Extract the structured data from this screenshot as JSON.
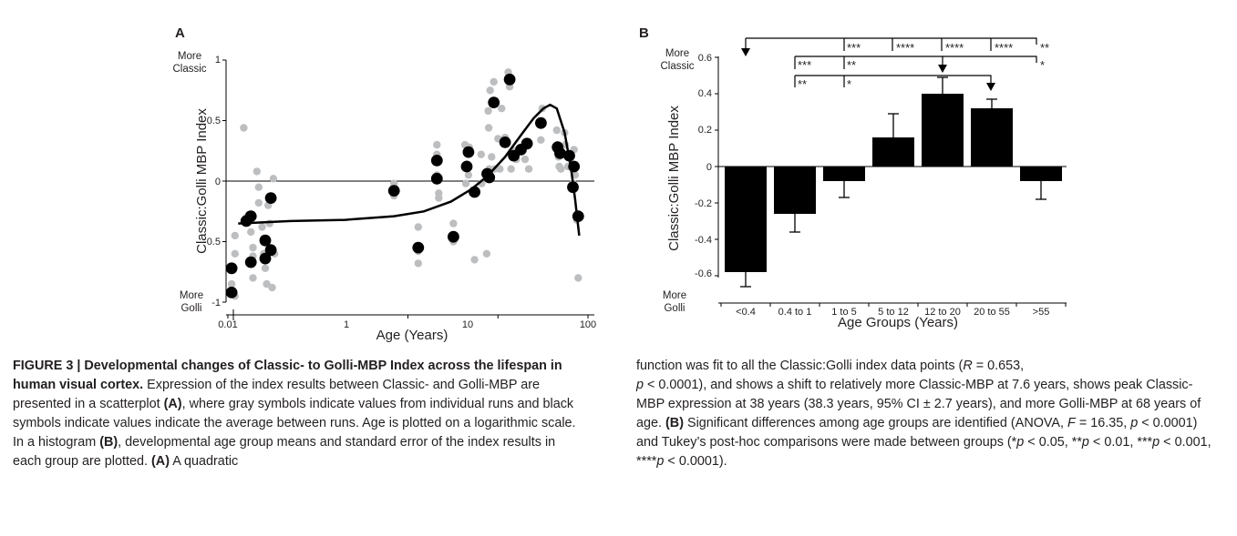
{
  "panel_a": {
    "letter": "A",
    "ylabel": "Classic:Golli MBP Index",
    "xlabel": "Age (Years)",
    "top_anno": [
      "More",
      "Classic"
    ],
    "bottom_anno": [
      "More",
      "Golli"
    ],
    "yticks": [
      "1",
      "0.5",
      "0",
      "-0.5",
      "-1"
    ],
    "xticks": [
      "0.01",
      "1",
      "10",
      "100"
    ]
  },
  "panel_b": {
    "letter": "B",
    "ylabel": "Classic:Golli MBP Index",
    "xlabel": "Age Groups (Years)",
    "top_anno": [
      "More",
      "Classic"
    ],
    "bottom_anno": [
      "More",
      "Golli"
    ],
    "yticks": [
      "0.6",
      "0.4",
      "0.2",
      "0",
      "-0.2",
      "-0.4",
      "-0.6"
    ],
    "sig_row1": [
      "***",
      "****",
      "****",
      "****",
      "**"
    ],
    "sig_row2": [
      "***",
      "**",
      "*"
    ],
    "sig_row3": [
      "**",
      "*"
    ]
  },
  "chart_data": [
    {
      "type": "scatter",
      "panel": "A",
      "xlabel": "Age (Years)",
      "ylabel": "Classic:Golli MBP Index",
      "x_scale": "log",
      "xlim": [
        0.01,
        100
      ],
      "ylim": [
        -1,
        1
      ],
      "series": [
        {
          "name": "",
          "color": "#bcbec0",
          "points": [
            [
              0.011,
              -0.72
            ],
            [
              0.011,
              -0.85
            ],
            [
              0.012,
              -0.95
            ],
            [
              0.012,
              -0.6
            ],
            [
              0.012,
              -0.45
            ],
            [
              0.015,
              0.44
            ],
            [
              0.016,
              -0.3
            ],
            [
              0.017,
              -0.28
            ],
            [
              0.018,
              -0.42
            ],
            [
              0.019,
              -0.55
            ],
            [
              0.019,
              -0.62
            ],
            [
              0.019,
              -0.8
            ],
            [
              0.021,
              0.08
            ],
            [
              0.022,
              -0.05
            ],
            [
              0.022,
              -0.18
            ],
            [
              0.024,
              -0.38
            ],
            [
              0.025,
              -0.6
            ],
            [
              0.026,
              -0.72
            ],
            [
              0.027,
              -0.85
            ],
            [
              0.028,
              -0.2
            ],
            [
              0.029,
              -0.35
            ],
            [
              0.029,
              -0.55
            ],
            [
              0.031,
              -0.88
            ],
            [
              0.032,
              0.02
            ],
            [
              0.033,
              -0.6
            ],
            [
              0.7,
              -0.02
            ],
            [
              0.7,
              -0.12
            ],
            [
              1.3,
              -0.38
            ],
            [
              1.3,
              -0.58
            ],
            [
              1.3,
              -0.68
            ],
            [
              2.1,
              0.3
            ],
            [
              2.1,
              0.22
            ],
            [
              2.1,
              0.05
            ],
            [
              2.2,
              -0.1
            ],
            [
              2.2,
              -0.14
            ],
            [
              3.2,
              -0.35
            ],
            [
              3.2,
              -0.5
            ],
            [
              4.3,
              0.3
            ],
            [
              4.4,
              -0.02
            ],
            [
              4.5,
              0.14
            ],
            [
              4.7,
              0.05
            ],
            [
              4.8,
              0.28
            ],
            [
              5.5,
              -0.65
            ],
            [
              6.5,
              0.22
            ],
            [
              6.6,
              -0.02
            ],
            [
              7.5,
              -0.6
            ],
            [
              7.8,
              0.58
            ],
            [
              7.9,
              0.44
            ],
            [
              8.0,
              0.1
            ],
            [
              8.2,
              0.75
            ],
            [
              8.5,
              0.2
            ],
            [
              9.0,
              0.82
            ],
            [
              9.2,
              0.1
            ],
            [
              10.0,
              0.35
            ],
            [
              10.5,
              0.1
            ],
            [
              11.0,
              0.6
            ],
            [
              12.0,
              0.36
            ],
            [
              13.0,
              0.9
            ],
            [
              13.5,
              0.78
            ],
            [
              14.0,
              0.1
            ],
            [
              15.0,
              0.25
            ],
            [
              16.0,
              0.18
            ],
            [
              18.0,
              0.28
            ],
            [
              20.0,
              0.18
            ],
            [
              21.0,
              0.32
            ],
            [
              22.0,
              0.1
            ],
            [
              30.0,
              0.34
            ],
            [
              31.0,
              0.6
            ],
            [
              45.0,
              0.42
            ],
            [
              46.0,
              0.3
            ],
            [
              47.0,
              0.2
            ],
            [
              48.0,
              0.12
            ],
            [
              50.0,
              0.1
            ],
            [
              55.0,
              0.4
            ],
            [
              56.0,
              0.3
            ],
            [
              60.0,
              0.12
            ],
            [
              68.0,
              -0.02
            ],
            [
              70.0,
              0.26
            ],
            [
              72.0,
              0.05
            ],
            [
              75.0,
              -0.32
            ],
            [
              76.0,
              -0.3
            ],
            [
              78.0,
              -0.8
            ]
          ]
        },
        {
          "name": "",
          "color": "#000000",
          "points": [
            [
              0.011,
              -0.72
            ],
            [
              0.011,
              -0.92
            ],
            [
              0.016,
              -0.33
            ],
            [
              0.018,
              -0.29
            ],
            [
              0.018,
              -0.67
            ],
            [
              0.026,
              -0.49
            ],
            [
              0.026,
              -0.64
            ],
            [
              0.03,
              -0.14
            ],
            [
              0.03,
              -0.57
            ],
            [
              0.7,
              -0.08
            ],
            [
              1.3,
              -0.55
            ],
            [
              2.1,
              0.17
            ],
            [
              2.1,
              0.02
            ],
            [
              3.2,
              -0.46
            ],
            [
              4.5,
              0.12
            ],
            [
              4.7,
              0.24
            ],
            [
              5.5,
              -0.09
            ],
            [
              7.6,
              0.06
            ],
            [
              8.0,
              0.03
            ],
            [
              9.0,
              0.65
            ],
            [
              12.0,
              0.32
            ],
            [
              13.5,
              0.84
            ],
            [
              15.0,
              0.21
            ],
            [
              18.0,
              0.26
            ],
            [
              21.0,
              0.31
            ],
            [
              30.0,
              0.48
            ],
            [
              46.0,
              0.28
            ],
            [
              49.0,
              0.23
            ],
            [
              62.0,
              0.21
            ],
            [
              68.0,
              -0.05
            ],
            [
              70.0,
              0.12
            ],
            [
              78.0,
              -0.29
            ]
          ]
        }
      ]
    },
    {
      "type": "bar",
      "panel": "B",
      "xlabel": "Age Groups (Years)",
      "ylabel": "Classic:Golli MBP Index",
      "categories": [
        "<0.4",
        "0.4 to 1",
        "1 to 5",
        "5 to 12",
        "12 to 20",
        "20 to 55",
        ">55"
      ],
      "values": [
        -0.58,
        -0.26,
        -0.08,
        0.16,
        0.4,
        0.32,
        -0.08
      ],
      "errors": [
        0.08,
        0.1,
        0.09,
        0.13,
        0.09,
        0.05,
        0.1
      ],
      "ylim": [
        -0.7,
        0.65
      ]
    }
  ],
  "caption": {
    "left": {
      "fig_label": "FIGURE 3 | ",
      "title": "Developmental changes of Classic- to Golli-MBP Index across the lifespan in human visual cortex.",
      "p1": " Expression of the index results between Classic- and Golli-MBP are presented in a scatterplot ",
      "a1": "(A)",
      "p2": ", where gray symbols indicate values from individual runs and black symbols indicate values indicate the average between runs. Age is plotted on a logarithmic scale. In a histogram ",
      "b1": "(B)",
      "p3": ", developmental age group means and standard error of the index results in each group are plotted. ",
      "a2": "(A)",
      "p4": " A quadratic"
    },
    "right": {
      "p1": "function was fit to all the Classic:Golli index data points (",
      "r_sym": "R",
      "p2": " = 0.653,",
      "p_sym1": "p",
      "p3": " < 0.0001), and shows a shift to relatively more Classic-MBP at 7.6 years, shows peak Classic-MBP expression at 38 years (38.3 years, 95% CI ± 2.7 years), and more Golli-MBP at 68 years of age. ",
      "b1": "(B)",
      "p4": " Significant differences among age groups are identified (ANOVA, ",
      "f_sym": "F",
      "p5": " = 16.35, ",
      "p_sym2": "p",
      "p6": " < 0.0001) and Tukey’s post-hoc comparisons were made between groups (*",
      "p_sym3": "p",
      "p7": " < 0.05, **",
      "p_sym4": "p",
      "p8": " < 0.01, ***",
      "p_sym5": "p",
      "p9": " < 0.001, ****",
      "p_sym6": "p",
      "p10": " < 0.0001)."
    }
  }
}
